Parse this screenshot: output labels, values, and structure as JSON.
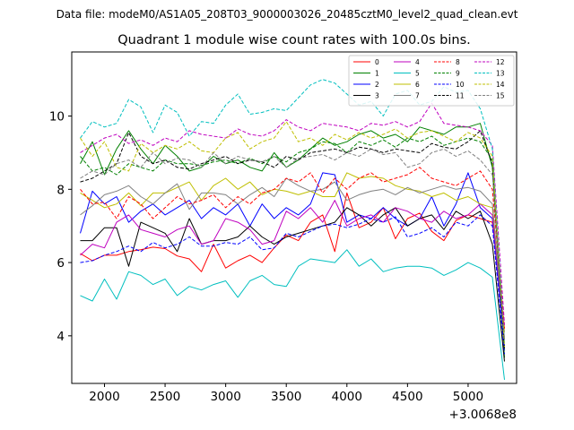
{
  "chart_data": {
    "type": "line",
    "suptitle": "Data file: modeM0/AS1A05_208T03_9000003026_20485cztM0_level2_quad_clean.evt",
    "title": "Quadrant 1 module wise count rates with 100.0s bins.",
    "xlabel": "",
    "ylabel": "",
    "offset_text": "+3.0068e8",
    "xlim": [
      1730,
      5400
    ],
    "ylim": [
      2.7,
      11.75
    ],
    "xticks": [
      2000,
      2500,
      3000,
      3500,
      4000,
      4500,
      5000
    ],
    "yticks": [
      4,
      6,
      8,
      10
    ],
    "legend_position": "top-right",
    "x": [
      1800,
      1900,
      2000,
      2100,
      2200,
      2300,
      2400,
      2500,
      2600,
      2700,
      2800,
      2900,
      3000,
      3100,
      3200,
      3300,
      3400,
      3500,
      3600,
      3700,
      3800,
      3900,
      4000,
      4100,
      4200,
      4300,
      4400,
      4500,
      4600,
      4700,
      4800,
      4900,
      5000,
      5100,
      5200,
      5300
    ],
    "series": [
      {
        "name": "0",
        "color": "#ff0000",
        "dash": "solid",
        "values": [
          6.25,
          6.05,
          6.2,
          6.2,
          6.3,
          6.35,
          6.42,
          6.38,
          6.18,
          6.1,
          5.75,
          6.5,
          5.85,
          6.05,
          6.2,
          6.0,
          6.4,
          6.75,
          6.6,
          7.1,
          7.3,
          6.3,
          7.9,
          6.95,
          7.1,
          7.5,
          6.65,
          7.2,
          7.35,
          6.85,
          6.6,
          7.15,
          7.3,
          7.2,
          7.1,
          4.2
        ]
      },
      {
        "name": "1",
        "color": "#008000",
        "dash": "solid",
        "values": [
          8.7,
          9.3,
          8.4,
          9.1,
          9.6,
          9.1,
          8.7,
          9.2,
          8.9,
          8.5,
          8.6,
          8.9,
          8.7,
          8.8,
          8.6,
          8.5,
          9.0,
          8.6,
          8.8,
          9.1,
          9.4,
          9.2,
          9.3,
          9.5,
          9.6,
          9.4,
          9.5,
          9.3,
          9.7,
          9.6,
          9.5,
          9.7,
          9.7,
          9.8,
          8.6,
          3.4
        ]
      },
      {
        "name": "2",
        "color": "#0000ff",
        "dash": "solid",
        "values": [
          6.8,
          7.95,
          7.6,
          7.8,
          7.1,
          7.4,
          7.6,
          7.3,
          7.5,
          7.7,
          7.2,
          7.5,
          7.3,
          7.6,
          7.0,
          7.6,
          7.2,
          7.5,
          7.3,
          7.6,
          8.45,
          8.4,
          7.1,
          7.3,
          7.2,
          7.5,
          7.2,
          7.0,
          7.2,
          7.8,
          7.0,
          7.6,
          8.45,
          7.5,
          7.2,
          3.7
        ]
      },
      {
        "name": "3",
        "color": "#000000",
        "dash": "solid",
        "values": [
          6.6,
          6.6,
          6.95,
          6.95,
          5.9,
          7.1,
          6.95,
          6.8,
          6.3,
          7.2,
          6.5,
          6.6,
          6.6,
          6.7,
          7.0,
          6.7,
          6.5,
          6.7,
          6.8,
          6.9,
          7.0,
          7.1,
          7.5,
          7.3,
          7.0,
          7.3,
          7.5,
          7.0,
          7.2,
          7.3,
          6.9,
          7.4,
          7.2,
          7.4,
          6.5,
          3.3
        ]
      },
      {
        "name": "4",
        "color": "#bf00bf",
        "dash": "solid",
        "values": [
          6.2,
          6.5,
          6.4,
          7.1,
          7.3,
          6.9,
          6.8,
          6.7,
          6.9,
          7.0,
          6.5,
          6.6,
          7.2,
          7.1,
          6.9,
          6.5,
          6.6,
          7.4,
          7.2,
          7.5,
          7.1,
          7.7,
          7.0,
          7.2,
          7.3,
          7.1,
          7.5,
          7.4,
          7.2,
          7.1,
          7.4,
          7.2,
          7.3,
          7.6,
          7.3,
          3.9
        ]
      },
      {
        "name": "5",
        "color": "#00bfbf",
        "dash": "solid",
        "values": [
          5.1,
          4.95,
          5.55,
          5.0,
          5.75,
          5.65,
          5.4,
          5.55,
          5.1,
          5.35,
          5.25,
          5.4,
          5.5,
          5.05,
          5.5,
          5.65,
          5.4,
          5.35,
          5.9,
          6.1,
          6.05,
          6.0,
          6.35,
          5.9,
          6.1,
          5.75,
          5.85,
          5.9,
          5.9,
          5.85,
          5.65,
          5.8,
          6.0,
          5.85,
          5.6,
          2.8
        ]
      },
      {
        "name": "6",
        "color": "#bfbf00",
        "dash": "solid",
        "values": [
          7.9,
          7.7,
          7.5,
          7.6,
          7.9,
          7.55,
          7.9,
          7.9,
          8.05,
          8.2,
          7.7,
          8.1,
          8.3,
          8.0,
          8.2,
          7.85,
          8.0,
          7.95,
          7.85,
          7.95,
          7.8,
          7.8,
          8.45,
          8.3,
          8.35,
          8.3,
          8.1,
          8.0,
          7.95,
          7.8,
          7.9,
          7.7,
          7.8,
          7.6,
          7.5,
          4.1
        ]
      },
      {
        "name": "7",
        "color": "#808080",
        "dash": "solid",
        "values": [
          7.3,
          7.55,
          7.85,
          7.95,
          8.1,
          7.8,
          7.6,
          7.9,
          8.15,
          7.45,
          7.9,
          7.9,
          7.85,
          7.6,
          7.85,
          8.05,
          7.8,
          8.3,
          8.1,
          7.95,
          8.0,
          8.2,
          7.7,
          7.85,
          7.95,
          8.0,
          7.85,
          8.05,
          7.9,
          8.0,
          8.1,
          8.0,
          8.05,
          7.95,
          7.6,
          3.9
        ]
      },
      {
        "name": "8",
        "color": "#ff0000",
        "dash": "dashed",
        "values": [
          8.0,
          7.6,
          7.65,
          7.2,
          7.8,
          7.6,
          7.2,
          7.5,
          7.8,
          7.6,
          7.7,
          7.85,
          7.5,
          7.8,
          7.6,
          7.9,
          8.0,
          8.3,
          8.2,
          8.45,
          7.9,
          8.3,
          8.0,
          8.3,
          8.45,
          8.2,
          8.3,
          8.4,
          8.6,
          8.3,
          8.2,
          8.1,
          8.3,
          8.5,
          8.0,
          4.2
        ]
      },
      {
        "name": "9",
        "color": "#008000",
        "dash": "dashed",
        "values": [
          8.9,
          8.5,
          8.6,
          8.4,
          8.7,
          8.6,
          8.5,
          8.8,
          8.7,
          8.7,
          8.65,
          8.75,
          8.8,
          8.7,
          8.85,
          8.7,
          8.9,
          8.75,
          9.0,
          9.1,
          9.3,
          9.25,
          9.0,
          9.3,
          9.2,
          9.35,
          9.15,
          9.4,
          9.3,
          9.45,
          9.2,
          9.3,
          9.4,
          9.3,
          8.8,
          3.6
        ]
      },
      {
        "name": "10",
        "color": "#0000ff",
        "dash": "dashed",
        "values": [
          6.0,
          6.05,
          6.2,
          6.3,
          6.45,
          6.3,
          6.55,
          6.4,
          6.5,
          6.7,
          6.45,
          6.45,
          6.55,
          6.5,
          6.7,
          6.35,
          6.4,
          6.8,
          6.7,
          6.85,
          7.0,
          7.05,
          6.95,
          7.05,
          7.2,
          7.1,
          7.25,
          6.7,
          6.8,
          6.95,
          6.7,
          7.1,
          7.0,
          7.3,
          7.0,
          3.5
        ]
      },
      {
        "name": "11",
        "color": "#000000",
        "dash": "dashed",
        "values": [
          8.2,
          8.3,
          8.5,
          8.7,
          9.55,
          8.9,
          8.7,
          8.8,
          8.6,
          8.55,
          8.7,
          8.8,
          8.9,
          8.7,
          8.8,
          8.75,
          8.6,
          8.9,
          8.8,
          9.0,
          9.05,
          9.1,
          9.0,
          9.15,
          9.1,
          9.0,
          9.1,
          9.05,
          9.0,
          9.25,
          9.15,
          9.1,
          9.3,
          9.6,
          8.7,
          3.6
        ]
      },
      {
        "name": "12",
        "color": "#bf00bf",
        "dash": "dashed",
        "values": [
          9.0,
          9.2,
          9.4,
          9.5,
          9.25,
          9.35,
          9.2,
          9.4,
          9.3,
          9.6,
          9.5,
          9.45,
          9.4,
          9.65,
          9.5,
          9.45,
          9.6,
          9.9,
          9.7,
          9.6,
          9.8,
          9.75,
          9.7,
          9.6,
          9.8,
          9.75,
          9.85,
          9.7,
          9.85,
          10.35,
          9.8,
          9.75,
          9.7,
          9.6,
          9.2,
          4.3
        ]
      },
      {
        "name": "13",
        "color": "#00bfbf",
        "dash": "dashed",
        "values": [
          9.4,
          9.85,
          9.7,
          9.8,
          10.45,
          10.25,
          9.55,
          10.3,
          10.1,
          9.45,
          9.85,
          9.8,
          10.3,
          10.6,
          10.05,
          10.1,
          10.2,
          10.15,
          10.5,
          10.85,
          11.0,
          10.9,
          10.6,
          10.3,
          10.4,
          10.0,
          10.6,
          10.7,
          10.3,
          10.4,
          10.8,
          10.65,
          10.7,
          10.2,
          9.1,
          3.8
        ]
      },
      {
        "name": "14",
        "color": "#bfbf00",
        "dash": "dashed",
        "values": [
          9.4,
          8.9,
          9.3,
          8.6,
          8.5,
          9.25,
          9.0,
          9.2,
          9.1,
          9.3,
          9.05,
          9.0,
          9.4,
          9.55,
          9.1,
          9.3,
          9.4,
          9.85,
          9.3,
          9.4,
          9.2,
          9.5,
          9.35,
          9.55,
          9.4,
          9.5,
          9.65,
          9.4,
          9.55,
          9.6,
          9.45,
          9.3,
          9.55,
          9.4,
          8.9,
          3.7
        ]
      },
      {
        "name": "15",
        "color": "#808080",
        "dash": "dashed",
        "values": [
          8.3,
          8.5,
          8.4,
          8.7,
          8.8,
          8.6,
          9.0,
          8.7,
          8.85,
          8.8,
          8.6,
          9.0,
          8.7,
          8.9,
          8.8,
          8.75,
          8.9,
          8.6,
          8.85,
          8.9,
          8.95,
          8.8,
          9.0,
          8.9,
          9.1,
          8.95,
          9.0,
          8.6,
          8.7,
          9.0,
          9.1,
          8.9,
          9.05,
          8.8,
          8.4,
          3.9
        ]
      }
    ]
  }
}
